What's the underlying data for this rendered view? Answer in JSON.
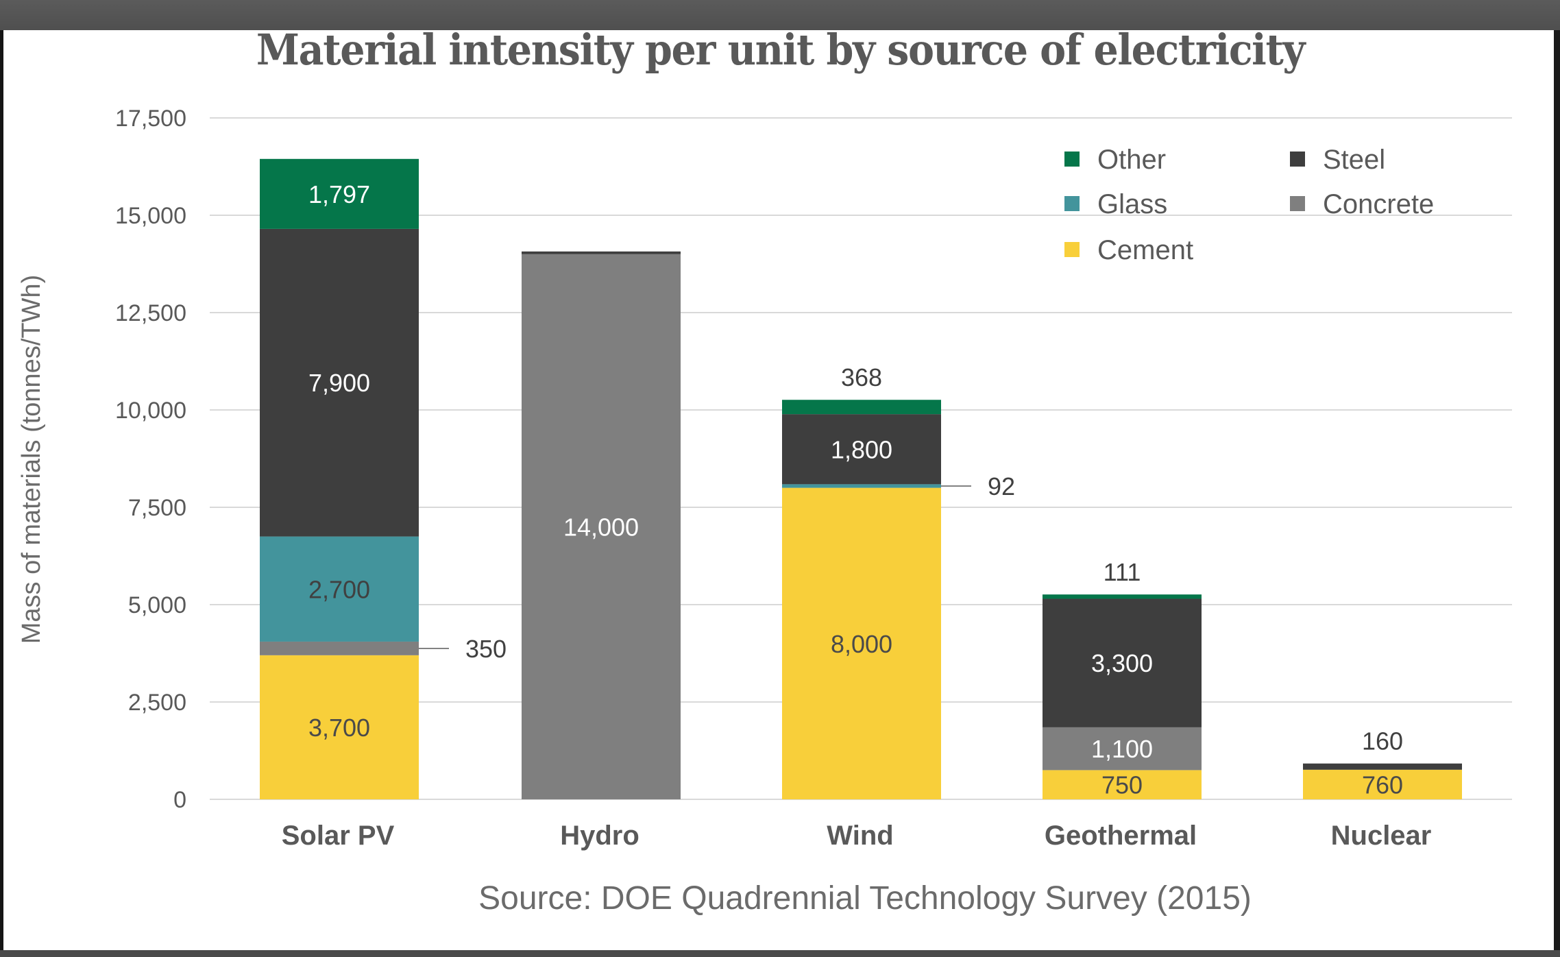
{
  "chart_data": {
    "type": "bar",
    "stacked": true,
    "title": "Material intensity per unit by source of electricity",
    "xlabel": "",
    "ylabel": "Mass of materials (tonnes/TWh)",
    "ylim": [
      0,
      17500
    ],
    "yticks": [
      0,
      2500,
      5000,
      7500,
      10000,
      12500,
      15000,
      17500
    ],
    "ytick_labels": [
      "0",
      "2,500",
      "5,000",
      "7,500",
      "10,000",
      "12,500",
      "15,000",
      "17,500"
    ],
    "grid": true,
    "legend_position": "top-right",
    "categories": [
      "Solar PV",
      "Hydro",
      "Wind",
      "Geothermal",
      "Nuclear"
    ],
    "series": [
      {
        "name": "Cement",
        "color": "#f8cf3a",
        "label_color": "#4a4a4a",
        "values": [
          3700,
          0,
          8000,
          750,
          760
        ],
        "labels": [
          "3,700",
          "",
          "8,000",
          "750",
          "760"
        ]
      },
      {
        "name": "Concrete",
        "color": "#7f7f7f",
        "label_color": "#ffffff",
        "values": [
          350,
          14000,
          0,
          1100,
          0
        ],
        "labels": [
          "350",
          "14,000",
          "",
          "1,100",
          ""
        ]
      },
      {
        "name": "Glass",
        "color": "#43949c",
        "label_color": "#404040",
        "values": [
          2700,
          0,
          92,
          0,
          0
        ],
        "labels": [
          "2,700",
          "",
          "92",
          "",
          ""
        ]
      },
      {
        "name": "Steel",
        "color": "#3e3e3e",
        "label_color": "#ffffff",
        "values": [
          7900,
          70,
          1800,
          3300,
          160
        ],
        "labels": [
          "7,900",
          "",
          "1,800",
          "3,300",
          "160"
        ]
      },
      {
        "name": "Other",
        "color": "#05764a",
        "label_color": "#ffffff",
        "values": [
          1797,
          0,
          368,
          111,
          0
        ],
        "labels": [
          "1,797",
          "",
          "368",
          "111",
          ""
        ]
      }
    ],
    "external_labels": [
      {
        "category": "Solar PV",
        "series": "Concrete",
        "text": "350",
        "style": "leader-right"
      },
      {
        "category": "Wind",
        "series": "Glass",
        "text": "92",
        "style": "leader-right"
      },
      {
        "category": "Wind",
        "series": "Other",
        "text": "368",
        "style": "above"
      },
      {
        "category": "Geothermal",
        "series": "Other",
        "text": "111",
        "style": "above"
      },
      {
        "category": "Nuclear",
        "series": "Steel",
        "text": "160",
        "style": "above"
      }
    ],
    "legend": [
      {
        "name": "Other",
        "color": "#05764a"
      },
      {
        "name": "Steel",
        "color": "#3e3e3e"
      },
      {
        "name": "Glass",
        "color": "#43949c"
      },
      {
        "name": "Concrete",
        "color": "#7f7f7f"
      },
      {
        "name": "Cement",
        "color": "#f8cf3a"
      }
    ],
    "source": "Source: DOE Quadrennial Technology Survey (2015)"
  }
}
